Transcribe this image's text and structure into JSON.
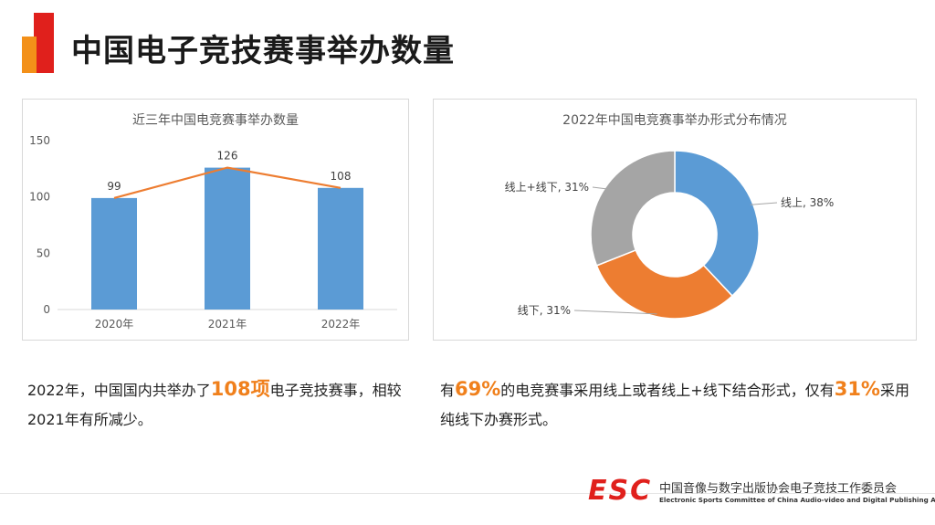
{
  "page": {
    "title": "中国电子竞技赛事举办数量",
    "colors": {
      "red": "#e0201c",
      "orange": "#f39019",
      "highlight": "#f0801c"
    }
  },
  "chart_data": [
    {
      "type": "bar",
      "title": "近三年中国电竞赛事举办数量",
      "categories": [
        "2020年",
        "2021年",
        "2022年"
      ],
      "values": [
        99,
        126,
        108
      ],
      "ylim": [
        0,
        150
      ],
      "yticks": [
        0,
        50,
        100,
        150
      ],
      "overlay_line": true,
      "bar_color": "#5b9bd5",
      "line_color": "#ed7d31",
      "xlabel": "",
      "ylabel": ""
    },
    {
      "type": "pie",
      "title": "2022年中国电竞赛事举办形式分布情况",
      "donut": true,
      "slices": [
        {
          "label": "线上, 38%",
          "value": 38,
          "color": "#5b9bd5"
        },
        {
          "label": "线下, 31%",
          "value": 31,
          "color": "#ed7d31"
        },
        {
          "label": "线上+线下, 31%",
          "value": 31,
          "color": "#a5a5a5"
        }
      ]
    }
  ],
  "captions": {
    "left": {
      "pre": "2022年，中国国内共举办了",
      "hl": "108项",
      "post": "电子竞技赛事，相较2021年有所减少。"
    },
    "right": {
      "pre": "有",
      "hl1": "69%",
      "mid": "的电竞赛事采用线上或者线上+线下结合形式，仅有",
      "hl2": "31%",
      "post": "采用纯线下办赛形式。"
    }
  },
  "footer": {
    "logo": "ESC",
    "org_cn": "中国音像与数字出版协会电子竞技工作委员会",
    "org_en": "Electronic Sports Committee of China Audio-video and Digital Publishing Association"
  }
}
